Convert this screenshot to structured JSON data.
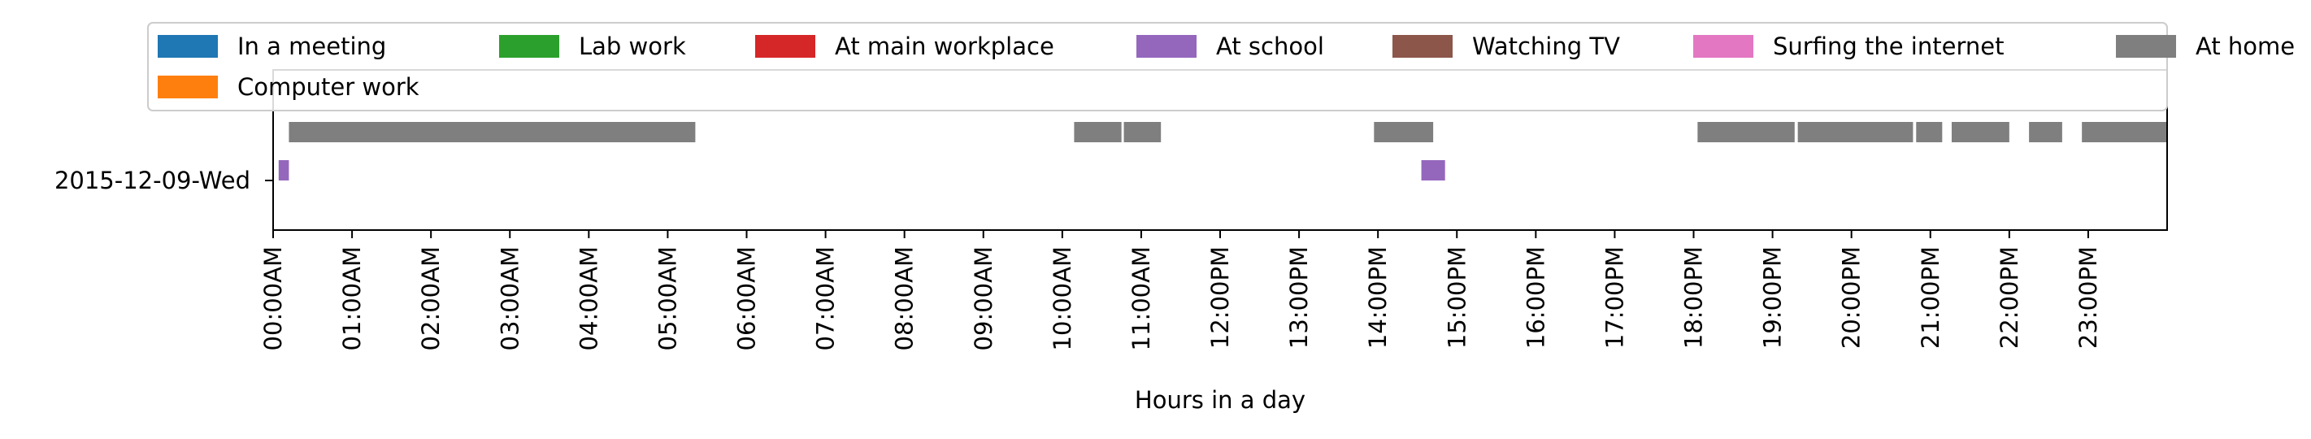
{
  "chart_data": {
    "type": "timeline",
    "title": "",
    "xlabel": "Hours in a day",
    "ylabel": "",
    "xlim": [
      0,
      24
    ],
    "x_tick_labels": [
      "00:00AM",
      "01:00AM",
      "02:00AM",
      "03:00AM",
      "04:00AM",
      "05:00AM",
      "06:00AM",
      "07:00AM",
      "08:00AM",
      "09:00AM",
      "10:00AM",
      "11:00AM",
      "12:00PM",
      "13:00PM",
      "14:00PM",
      "15:00PM",
      "16:00PM",
      "17:00PM",
      "18:00PM",
      "19:00PM",
      "20:00PM",
      "21:00PM",
      "22:00PM",
      "23:00PM"
    ],
    "y_categories": [
      "2015-12-09-Wed"
    ],
    "grid": false,
    "legend": {
      "placement": "top",
      "ncol": 7
    },
    "series": [
      {
        "name": "In a meeting",
        "color": "#1f77b4",
        "intervals": []
      },
      {
        "name": "Lab work",
        "color": "#2ca02c",
        "intervals": []
      },
      {
        "name": "At main workplace",
        "color": "#d62728",
        "intervals": []
      },
      {
        "name": "At school",
        "color": "#9467bd",
        "lane": "lower",
        "intervals": [
          [
            0.07,
            0.2
          ],
          [
            14.55,
            14.85
          ]
        ]
      },
      {
        "name": "Watching TV",
        "color": "#8c564b",
        "intervals": []
      },
      {
        "name": "Surfing the internet",
        "color": "#e377c2",
        "intervals": []
      },
      {
        "name": "At home",
        "color": "#7f7f7f",
        "lane": "upper",
        "intervals": [
          [
            0.2,
            5.35
          ],
          [
            10.15,
            10.75
          ],
          [
            10.78,
            11.25
          ],
          [
            13.95,
            14.7
          ],
          [
            18.05,
            19.28
          ],
          [
            19.32,
            20.78
          ],
          [
            20.82,
            21.15
          ],
          [
            21.27,
            22.0
          ],
          [
            22.25,
            22.67
          ],
          [
            22.92,
            24.0
          ]
        ]
      },
      {
        "name": "Computer work",
        "color": "#ff7f0e",
        "intervals": []
      }
    ]
  }
}
